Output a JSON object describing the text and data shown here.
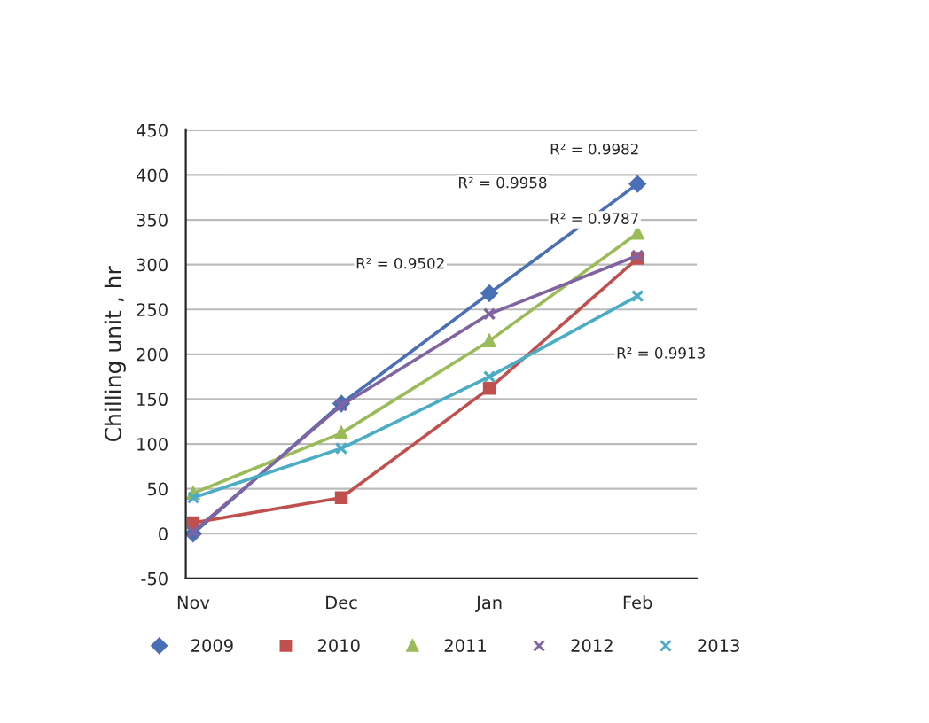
{
  "chart_data": {
    "type": "line",
    "ylabel": "Chilling unit , hr",
    "categories": [
      "Nov",
      "Dec",
      "Jan",
      "Feb"
    ],
    "series": [
      {
        "name": "2009",
        "color": "#4a6fb5",
        "marker": "diamond",
        "values": [
          0,
          145,
          268,
          390
        ]
      },
      {
        "name": "2010",
        "color": "#c0504d",
        "marker": "square",
        "values": [
          12,
          40,
          162,
          307
        ]
      },
      {
        "name": "2011",
        "color": "#9bbb59",
        "marker": "triangle",
        "values": [
          45,
          112,
          215,
          335
        ]
      },
      {
        "name": "2012",
        "color": "#8064a2",
        "marker": "cross",
        "values": [
          2,
          143,
          245,
          310
        ]
      },
      {
        "name": "2013",
        "color": "#4bacc6",
        "marker": "cross",
        "values": [
          40,
          95,
          175,
          265
        ]
      }
    ],
    "annotations": [
      "R² = 0.9982",
      "R² = 0.9958",
      "R² = 0.9502",
      "R² = 0.9787",
      "R² = 0.9913"
    ],
    "ylim": [
      -50,
      450
    ],
    "yticks": [
      -50,
      0,
      50,
      100,
      150,
      200,
      250,
      300,
      350,
      400,
      450
    ],
    "grid": "y",
    "legend": "bottom"
  }
}
